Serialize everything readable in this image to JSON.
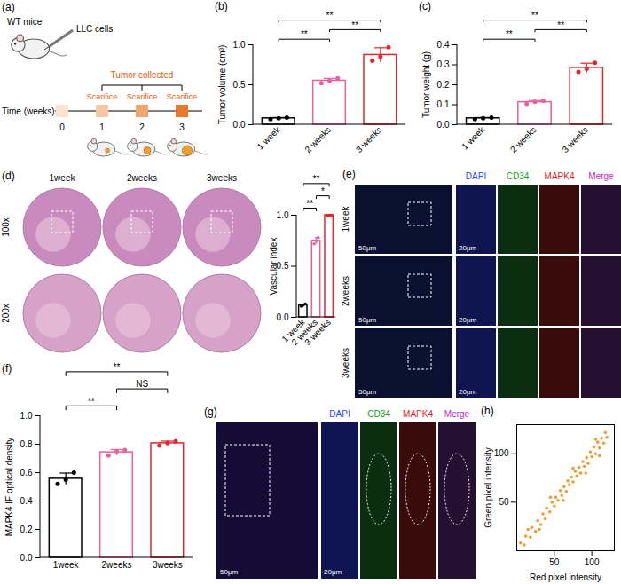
{
  "chart_data": [
    {
      "panel": "(b)",
      "type": "bar",
      "ylabel": "Tumor volume (cm³)",
      "categories": [
        "1 week",
        "2 weeks",
        "3 weeks"
      ],
      "values": [
        0.08,
        0.55,
        0.873
      ],
      "errors": [
        0.01,
        0.03,
        0.09
      ],
      "points": [
        [
          0.07,
          0.08,
          0.09
        ],
        [
          0.52,
          0.55,
          0.58
        ],
        [
          0.8,
          0.85,
          0.97
        ]
      ],
      "colors": [
        "#000000",
        "#e8609d",
        "#e3262e"
      ],
      "ylim": [
        0,
        1
      ],
      "yticks": [
        {
          "value": 0,
          "label": "0.0"
        },
        0.5,
        {
          "value": 1,
          "label": "1.0"
        }
      ],
      "significance": [
        {
          "from": "1 week",
          "to": "2 weeks",
          "label": "**"
        },
        {
          "from": "2 weeks",
          "to": "3 weeks",
          "label": "**"
        },
        {
          "from": "1 week",
          "to": "3 weeks",
          "label": "**"
        }
      ]
    },
    {
      "panel": "(c)",
      "type": "bar",
      "ylabel": "Tumor weight (g)",
      "categories": [
        "1 week",
        "2 weeks",
        "3 weeks"
      ],
      "values": [
        0.032,
        0.113,
        0.285
      ],
      "errors": [
        0.004,
        0.008,
        0.023
      ],
      "points": [
        [
          0.028,
          0.032,
          0.036
        ],
        [
          0.105,
          0.115,
          0.12
        ],
        [
          0.265,
          0.28,
          0.31
        ]
      ],
      "colors": [
        "#000000",
        "#e8609d",
        "#e3262e"
      ],
      "ylim": [
        0,
        0.4
      ],
      "yticks": [
        {
          "value": 0,
          "label": "0.0"
        },
        0.1,
        0.2,
        0.3,
        0.4
      ],
      "significance": [
        {
          "from": "1 week",
          "to": "2 weeks",
          "label": "**"
        },
        {
          "from": "2 weeks",
          "to": "3 weeks",
          "label": "**"
        },
        {
          "from": "1 week",
          "to": "3 weeks",
          "label": "**"
        }
      ]
    },
    {
      "type": "bar",
      "ylabel": "Vascular index",
      "categories": [
        "1 week",
        "2 weeks",
        "3 weeks"
      ],
      "values": [
        0.12,
        0.75,
        1
      ],
      "errors": [
        0.01,
        0.03,
        0
      ],
      "points": [
        [
          0.11,
          0.12,
          0.13
        ],
        [
          0.72,
          0.75,
          0.78
        ],
        [
          1,
          1,
          1
        ]
      ],
      "colors": [
        "#000000",
        "#e8609d",
        "#e3262e"
      ],
      "ylim": [
        0,
        1
      ],
      "yticks": [
        {
          "value": 0,
          "label": "0.0"
        },
        0.5,
        {
          "value": 1,
          "label": "1.0"
        }
      ],
      "significance": [
        {
          "from": "1 week",
          "to": "2 weeks",
          "label": "**"
        },
        {
          "from": "2 weeks",
          "to": "3 weeks",
          "label": "*"
        },
        {
          "from": "1 week",
          "to": "3 weeks",
          "label": "**"
        }
      ]
    },
    {
      "panel": "(f)",
      "type": "bar",
      "ylabel": "MAPK4 IF optical density",
      "categories": [
        "1week",
        "2weeks",
        "3weeks"
      ],
      "values": [
        0.557,
        0.743,
        0.807
      ],
      "errors": [
        0.04,
        0.02,
        0.015
      ],
      "points": [
        [
          0.52,
          0.55,
          0.6
        ],
        [
          0.72,
          0.75,
          0.76
        ],
        [
          0.79,
          0.81,
          0.82
        ]
      ],
      "colors": [
        "#000000",
        "#e8609d",
        "#e3262e"
      ],
      "ylim": [
        0,
        1
      ],
      "yticks": [
        {
          "value": 0,
          "label": "0.0"
        },
        0.2,
        0.4,
        0.6,
        0.8,
        {
          "value": 1,
          "label": "1.0"
        }
      ],
      "significance": [
        {
          "from": "1week",
          "to": "2weeks",
          "label": "**"
        },
        {
          "from": "2weeks",
          "to": "3weeks",
          "label": "NS"
        },
        {
          "from": "1week",
          "to": "3weeks",
          "label": "**"
        }
      ]
    },
    {
      "panel": "(h)",
      "type": "scatter",
      "xlabel": "Red pixel intensity",
      "ylabel": "Green pixel intensity",
      "xlim": [
        0,
        130
      ],
      "ylim": [
        0,
        130
      ],
      "xticks": [
        50,
        100
      ],
      "yticks": [
        50,
        100
      ],
      "color": "#e6a03c",
      "x": [
        5,
        10,
        12,
        18,
        20,
        25,
        28,
        32,
        35,
        38,
        40,
        44,
        47,
        50,
        52,
        55,
        58,
        60,
        63,
        66,
        68,
        70,
        73,
        75,
        78,
        80,
        83,
        85,
        88,
        90,
        93,
        95,
        98,
        100,
        103,
        105,
        108,
        110,
        113,
        116,
        118,
        120,
        15,
        30,
        45,
        62,
        75,
        92,
        105,
        110
      ],
      "y": [
        8,
        6,
        15,
        14,
        24,
        20,
        31,
        27,
        38,
        33,
        44,
        40,
        50,
        46,
        55,
        52,
        62,
        57,
        66,
        61,
        72,
        68,
        76,
        71,
        82,
        77,
        86,
        80,
        92,
        87,
        96,
        90,
        102,
        97,
        107,
        100,
        112,
        106,
        116,
        111,
        122,
        117,
        22,
        22,
        55,
        52,
        85,
        80,
        115,
        98
      ]
    }
  ],
  "figure": {
    "schematic": {
      "panel": "(a)",
      "subject": "WT mice",
      "injection": "LLC cells",
      "span_label": "Tumor collected",
      "axis_label": "Time (weeks)",
      "time_points": [
        "0",
        "1",
        "2",
        "3"
      ],
      "events": [
        "Scarifice",
        "Scarifice",
        "Scarifice"
      ]
    },
    "histology": {
      "panel": "(d)",
      "columns": [
        "1week",
        "2weeks",
        "3weeks"
      ],
      "rows": [
        "100x",
        "200x"
      ]
    },
    "if_time": {
      "panel": "(e)",
      "channels": [
        "DAPI",
        "CD34",
        "MAPK4",
        "Merge"
      ],
      "rows": [
        "1week",
        "2weeks",
        "3weeks"
      ],
      "scale_bars": [
        "50μm",
        "20μm"
      ]
    },
    "if_coloc": {
      "panel": "(g)",
      "channels": [
        "DAPI",
        "CD34",
        "MAPK4",
        "Merge"
      ],
      "scale_bars": [
        "50μm",
        "20μm"
      ]
    }
  }
}
